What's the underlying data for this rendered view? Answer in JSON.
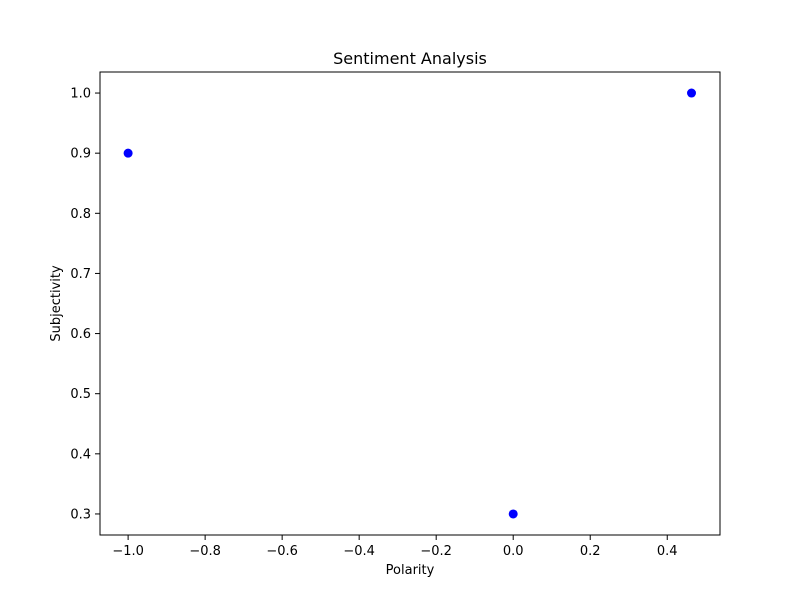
{
  "chart_data": {
    "type": "scatter",
    "title": "Sentiment Analysis",
    "xlabel": "Polarity",
    "ylabel": "Subjectivity",
    "xlim": [
      -1.073,
      0.537
    ],
    "ylim": [
      0.265,
      1.035
    ],
    "xticks": [
      -1.0,
      -0.8,
      -0.6,
      -0.4,
      -0.2,
      0.0,
      0.2,
      0.4
    ],
    "xtick_labels": [
      "−1.0",
      "−0.8",
      "−0.6",
      "−0.4",
      "−0.2",
      "0.0",
      "0.2",
      "0.4"
    ],
    "yticks": [
      0.3,
      0.4,
      0.5,
      0.6,
      0.7,
      0.8,
      0.9,
      1.0
    ],
    "ytick_labels": [
      "0.3",
      "0.4",
      "0.5",
      "0.6",
      "0.7",
      "0.8",
      "0.9",
      "1.0"
    ],
    "grid": false,
    "series": [
      {
        "color": "#0000ff",
        "x": [
          -1.0,
          0.0,
          0.463
        ],
        "y": [
          0.9,
          0.3,
          1.0
        ]
      }
    ]
  }
}
